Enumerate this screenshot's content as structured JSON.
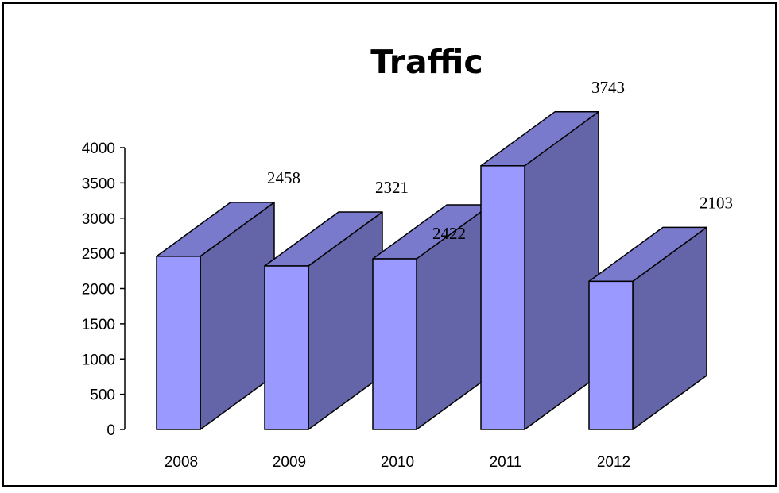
{
  "chart_data": {
    "type": "bar",
    "title": "Traffic",
    "xlabel": "",
    "ylabel": "",
    "categories": [
      "2008",
      "2009",
      "2010",
      "2011",
      "2012"
    ],
    "values": [
      2458,
      2321,
      2422,
      3743,
      2103
    ],
    "data_labels": [
      "2458",
      "2321",
      "2422",
      "3743",
      "2103"
    ],
    "ylim": [
      0,
      4000
    ],
    "yticks": [
      0,
      500,
      1000,
      1500,
      2000,
      2500,
      3000,
      3500,
      4000
    ],
    "grid": false,
    "legend": "none",
    "style": "3d",
    "colors": {
      "front": "#9999ff",
      "top": "#7a7acc",
      "side": "#6464a8",
      "outline": "#000000"
    }
  }
}
